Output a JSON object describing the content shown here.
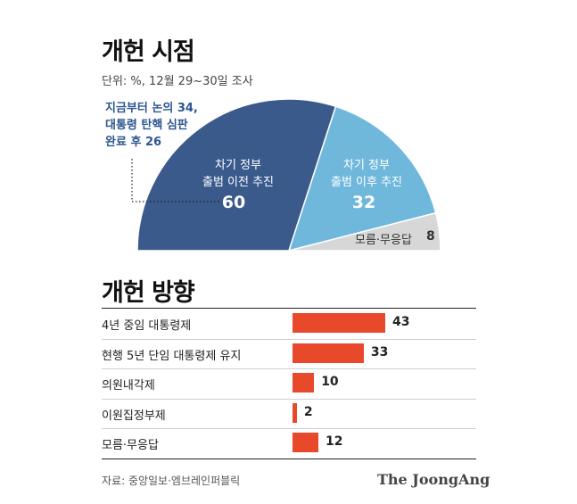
{
  "chart_data": [
    {
      "type": "pie",
      "title": "개헌 시점",
      "subtitle": "단위: %, 12월 29~30일 조사",
      "slices": [
        {
          "label_line1": "차기 정부",
          "label_line2": "출범 이전 추진",
          "value": 60,
          "color": "#3a5a8c"
        },
        {
          "label_line1": "차기 정부",
          "label_line2": "출범 이후 추진",
          "value": 32,
          "color": "#6fb8dc"
        },
        {
          "label": "모름·무응답",
          "value": 8,
          "color": "#d7d7d7"
        }
      ],
      "annotation": {
        "line1_text": "지금부터 논의 ",
        "line1_value": "34",
        "line1_suffix": ",",
        "line2": "대통령 탄핵 심판",
        "line3_text": "완료 후 ",
        "line3_value": "26"
      }
    },
    {
      "type": "bar",
      "title": "개헌 방향",
      "categories": [
        "4년 중임 대통령제",
        "현행 5년 단임 대통령제 유지",
        "의원내각제",
        "이원집정부제",
        "모름·무응답"
      ],
      "values": [
        43,
        33,
        10,
        2,
        12
      ],
      "bar_color": "#e8492b"
    }
  ],
  "footer": {
    "source": "자료: 중앙일보·엠브레인퍼블릭",
    "logo": "The JoongAng"
  }
}
